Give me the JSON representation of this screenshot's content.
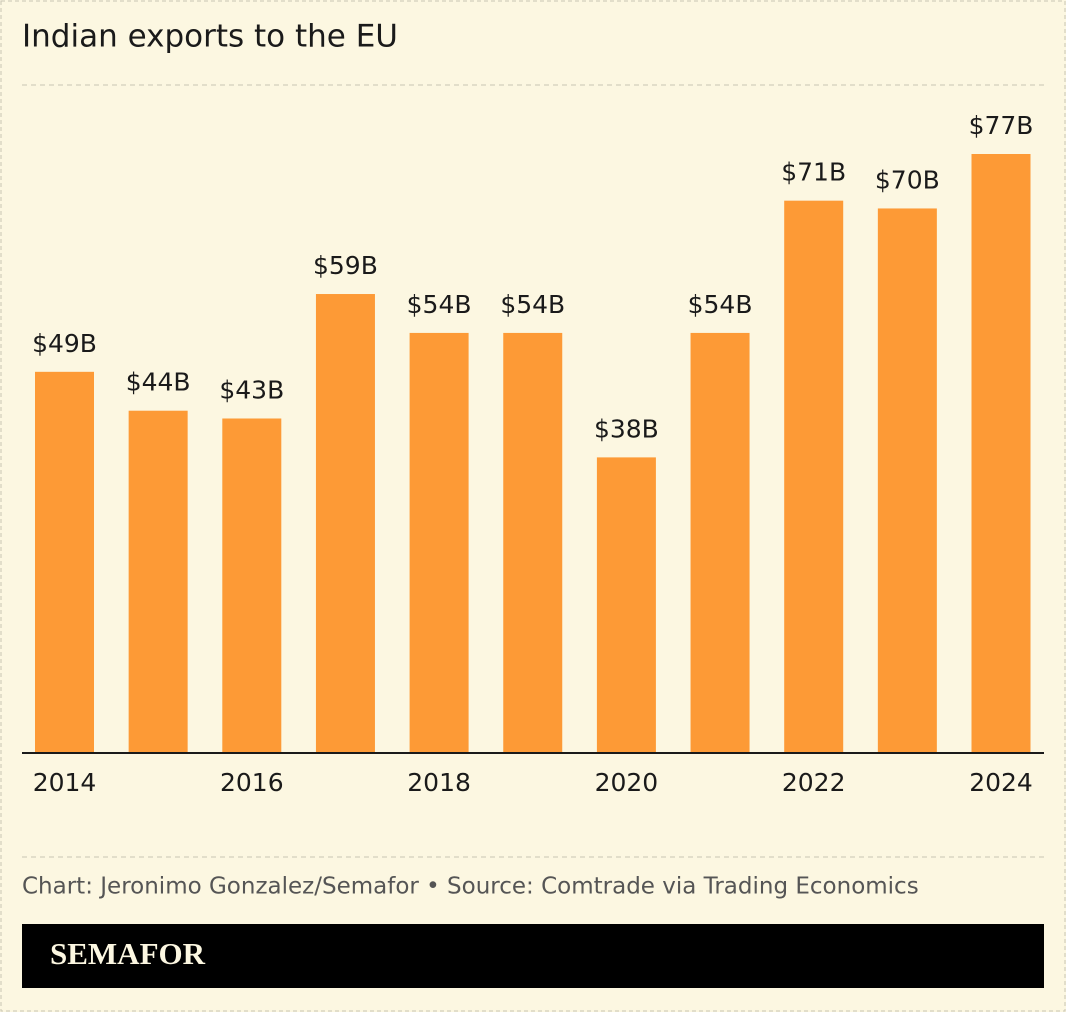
{
  "chart_data": {
    "type": "bar",
    "title": "Indian exports to the EU",
    "categories": [
      "2014",
      null,
      "2016",
      null,
      "2018",
      null,
      "2020",
      null,
      "2022",
      null,
      "2024"
    ],
    "values": [
      49,
      44,
      43,
      59,
      54,
      54,
      38,
      54,
      71,
      70,
      77
    ],
    "value_labels": [
      "$49B",
      "$44B",
      "$43B",
      "$59B",
      "$54B",
      "$54B",
      "$38B",
      "$54B",
      "$71B",
      "$70B",
      "$77B"
    ],
    "color": "#fd9a36"
  },
  "footer": {
    "credit": "Chart: Jeronimo Gonzalez/Semafor • Source: Comtrade via Trading Economics",
    "brand": "SEMAFOR"
  }
}
